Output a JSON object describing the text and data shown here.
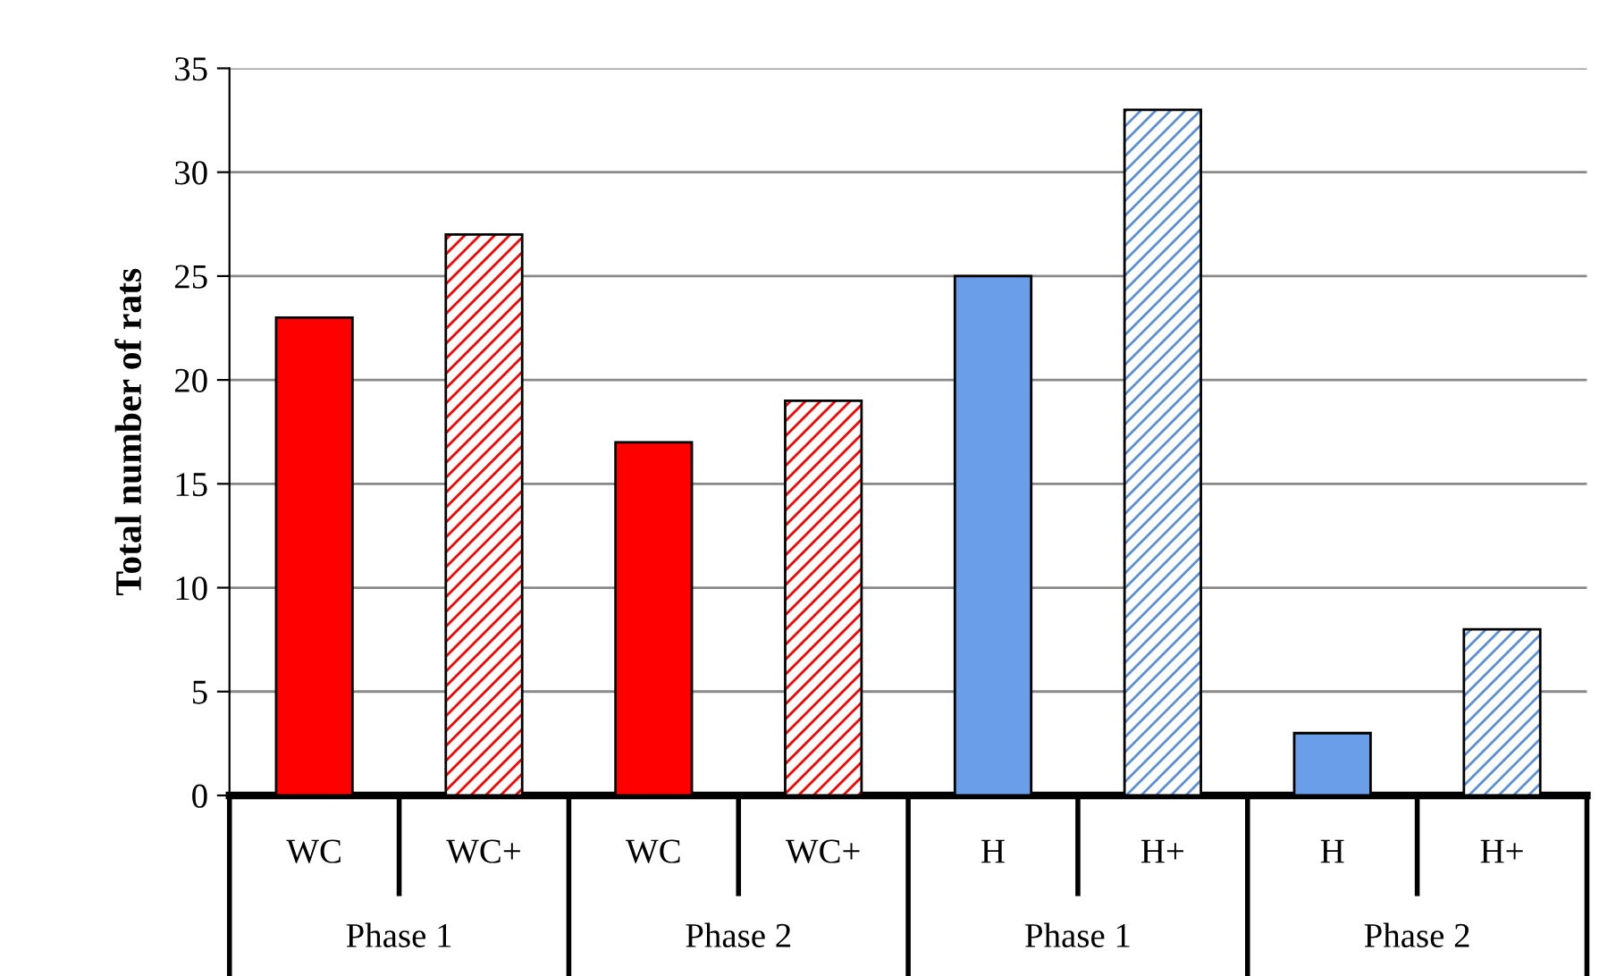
{
  "chart_data": {
    "type": "bar",
    "ylabel": "Total number of rats",
    "categories": [
      "WC",
      "WC+",
      "WC",
      "WC+",
      "H",
      "H+",
      "H",
      "H+"
    ],
    "series": [
      {
        "colors": [
          "#ff0000",
          null,
          "#ff0000",
          null,
          "#6b9ee8",
          null,
          "#6b9ee8",
          null
        ],
        "values": [
          23,
          null,
          17,
          null,
          25,
          null,
          3,
          null
        ]
      },
      {
        "colors": [
          null,
          "#ff0000",
          null,
          "#ff0000",
          null,
          "#5b8fd6",
          null,
          "#5b8fd6"
        ],
        "values": [
          null,
          27,
          null,
          19,
          null,
          33,
          null,
          8
        ]
      }
    ],
    "annotations": [
      "Phase 1",
      "Phase 2",
      "Phase 1",
      "Phase 2"
    ],
    "ylim": [
      0,
      35
    ],
    "yticks": [
      0,
      5,
      10,
      15,
      20,
      25,
      30,
      35
    ],
    "grid": "y",
    "legend": false
  }
}
